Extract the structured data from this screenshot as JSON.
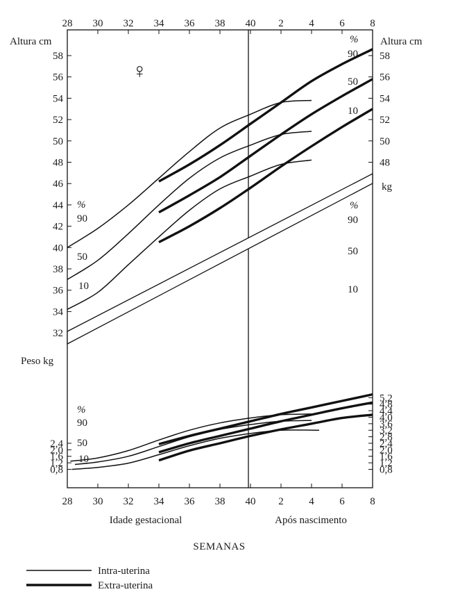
{
  "chart_data": {
    "type": "line",
    "title": "SEMANAS",
    "x_axis": {
      "top_ticks": [
        "28",
        "30",
        "32",
        "34",
        "36",
        "38",
        "40",
        "2",
        "4",
        "6",
        "8"
      ],
      "bottom_ticks": [
        "28",
        "30",
        "32",
        "34",
        "36",
        "38",
        "40",
        "2",
        "4",
        "6",
        "8"
      ],
      "label_left": "Idade gestacional",
      "label_right": "Após nascimento",
      "range_weeks": [
        28,
        48
      ]
    },
    "height_axis": {
      "label_left": "Altura cm",
      "label_right": "Altura cm",
      "left_ticks": [
        "58",
        "56",
        "54",
        "52",
        "50",
        "48",
        "46",
        "44",
        "42",
        "40",
        "38",
        "36",
        "34",
        "32"
      ],
      "right_ticks": [
        "58",
        "56",
        "54",
        "52",
        "50",
        "48"
      ],
      "range": [
        30.5,
        60
      ]
    },
    "weight_axis": {
      "label_left": "Peso kg",
      "label_right": "kg",
      "left_ticks": [
        "2,4",
        "2,0",
        "1,6",
        "1,2",
        "0,8"
      ],
      "right_ticks": [
        "5,2",
        "4,8",
        "4,4",
        "4,0",
        "3,6",
        "3,2",
        "2,8",
        "2,4",
        "2,0",
        "1,6",
        "1,2",
        "0,8"
      ],
      "range": [
        0.55,
        5.7
      ]
    },
    "symbol": "♀",
    "percentile_sign": "%",
    "height_series": [
      {
        "name": "90",
        "kind": "intra-uterina",
        "points": [
          [
            28,
            40
          ],
          [
            30,
            41.8
          ],
          [
            32,
            44
          ],
          [
            34,
            46.5
          ],
          [
            36,
            49
          ],
          [
            38,
            51.2
          ],
          [
            40,
            52.5
          ],
          [
            42,
            53.6
          ],
          [
            44,
            53.8
          ]
        ]
      },
      {
        "name": "50",
        "kind": "intra-uterina",
        "points": [
          [
            28,
            37
          ],
          [
            30,
            38.8
          ],
          [
            32,
            41.3
          ],
          [
            34,
            44
          ],
          [
            36,
            46.5
          ],
          [
            38,
            48.4
          ],
          [
            40,
            49.6
          ],
          [
            42,
            50.6
          ],
          [
            44,
            50.9
          ]
        ]
      },
      {
        "name": "10",
        "kind": "intra-uterina",
        "points": [
          [
            28,
            34.2
          ],
          [
            30,
            35.8
          ],
          [
            32,
            38.4
          ],
          [
            34,
            41
          ],
          [
            36,
            43.5
          ],
          [
            38,
            45.5
          ],
          [
            40,
            46.7
          ],
          [
            42,
            47.8
          ],
          [
            44,
            48.2
          ]
        ]
      },
      {
        "name": "90",
        "kind": "extra-uterina",
        "points": [
          [
            34,
            46.2
          ],
          [
            36,
            47.8
          ],
          [
            38,
            49.6
          ],
          [
            40,
            51.6
          ],
          [
            42,
            53.6
          ],
          [
            44,
            55.6
          ],
          [
            46,
            57.2
          ],
          [
            48,
            58.6
          ]
        ]
      },
      {
        "name": "50",
        "kind": "extra-uterina",
        "points": [
          [
            34,
            43.3
          ],
          [
            36,
            44.9
          ],
          [
            38,
            46.6
          ],
          [
            40,
            48.6
          ],
          [
            42,
            50.6
          ],
          [
            44,
            52.5
          ],
          [
            46,
            54.2
          ],
          [
            48,
            55.8
          ]
        ]
      },
      {
        "name": "10",
        "kind": "extra-uterina",
        "points": [
          [
            34,
            40.5
          ],
          [
            36,
            42
          ],
          [
            38,
            43.7
          ],
          [
            40,
            45.6
          ],
          [
            42,
            47.6
          ],
          [
            44,
            49.5
          ],
          [
            46,
            51.3
          ],
          [
            48,
            53
          ]
        ]
      }
    ],
    "weight_series": [
      {
        "name": "90",
        "kind": "intra-uterina",
        "points": [
          [
            28.2,
            1.3
          ],
          [
            30,
            1.5
          ],
          [
            32,
            1.95
          ],
          [
            34,
            2.6
          ],
          [
            36,
            3.2
          ],
          [
            38,
            3.65
          ],
          [
            40,
            3.95
          ],
          [
            42,
            4.15
          ],
          [
            44,
            4.2
          ]
        ]
      },
      {
        "name": "50",
        "kind": "intra-uterina",
        "points": [
          [
            28.5,
            1.1
          ],
          [
            30,
            1.25
          ],
          [
            32,
            1.6
          ],
          [
            34,
            2.2
          ],
          [
            36,
            2.8
          ],
          [
            38,
            3.25
          ],
          [
            40,
            3.55
          ],
          [
            42,
            3.75
          ],
          [
            44,
            3.8
          ]
        ]
      },
      {
        "name": "10",
        "kind": "intra-uterina",
        "points": [
          [
            28.3,
            0.8
          ],
          [
            30,
            0.92
          ],
          [
            32,
            1.18
          ],
          [
            34,
            1.7
          ],
          [
            36,
            2.25
          ],
          [
            38,
            2.7
          ],
          [
            40,
            3.0
          ],
          [
            42,
            3.2
          ],
          [
            44.5,
            3.2
          ]
        ]
      },
      {
        "name": "90",
        "kind": "extra-uterina",
        "points": [
          [
            34,
            2.35
          ],
          [
            36,
            2.85
          ],
          [
            38,
            3.3
          ],
          [
            40,
            3.75
          ],
          [
            42,
            4.2
          ],
          [
            44,
            4.6
          ],
          [
            46,
            5.0
          ],
          [
            48,
            5.4
          ]
        ]
      },
      {
        "name": "50",
        "kind": "extra-uterina",
        "points": [
          [
            34,
            1.85
          ],
          [
            36,
            2.4
          ],
          [
            38,
            2.85
          ],
          [
            40,
            3.3
          ],
          [
            42,
            3.75
          ],
          [
            44,
            4.15
          ],
          [
            46,
            4.55
          ],
          [
            48,
            4.9
          ]
        ]
      },
      {
        "name": "10",
        "kind": "extra-uterina",
        "points": [
          [
            34,
            1.35
          ],
          [
            36,
            1.95
          ],
          [
            38,
            2.4
          ],
          [
            40,
            2.85
          ],
          [
            42,
            3.25
          ],
          [
            44,
            3.6
          ],
          [
            46,
            3.95
          ],
          [
            48,
            4.15
          ]
        ]
      }
    ],
    "legend": [
      {
        "label": "Intra-uterina",
        "style": "thin"
      },
      {
        "label": "Extra-uterina",
        "style": "thick"
      }
    ]
  }
}
